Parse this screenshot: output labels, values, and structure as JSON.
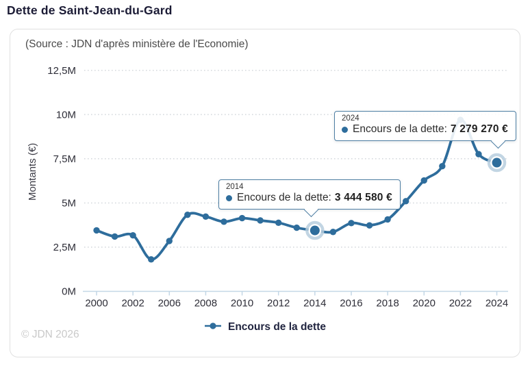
{
  "page": {
    "title": "Dette de Saint-Jean-du-Gard"
  },
  "card": {
    "subtitle": "(Source : JDN d'après ministère de l'Economie)"
  },
  "footer": {
    "copyright": "© JDN 2026"
  },
  "legend": {
    "label": "Encours de la dette"
  },
  "colors": {
    "line": "#2e6d9c",
    "halo": "#b7cede",
    "grid_dots": "#d6dade",
    "axis": "#c3d7e6",
    "tick_label": "#2e2e38",
    "tooltip_border": "#4d7ea3"
  },
  "tooltips": [
    {
      "year": "2014",
      "label": "Encours de la dette:",
      "value": "3 444 580 €"
    },
    {
      "year": "2024",
      "label": "Encours de la dette:",
      "value": "7 279 270 €"
    }
  ],
  "chart_data": {
    "type": "line",
    "title": "Dette de Saint-Jean-du-Gard",
    "xlabel": "",
    "ylabel": "Montants (€)",
    "ylim": [
      0,
      12500000
    ],
    "grid": "horizontal dotted",
    "legend_position": "bottom",
    "line_style": "smooth spline with point markers",
    "series": [
      {
        "name": "Encours de la dette",
        "x": [
          2000,
          2001,
          2002,
          2004,
          2006,
          2007,
          2008,
          2009,
          2010,
          2011,
          2012,
          2013,
          2014,
          2015,
          2016,
          2017,
          2018,
          2019,
          2020,
          2021,
          2022,
          2023,
          2024
        ],
        "values": [
          3450000,
          3100000,
          3170000,
          1810000,
          2850000,
          4330000,
          4230000,
          3940000,
          4140000,
          4010000,
          3880000,
          3600000,
          3444580,
          3360000,
          3860000,
          3730000,
          4070000,
          5100000,
          6270000,
          7080000,
          9700000,
          7760000,
          7279270
        ]
      }
    ],
    "x_tick_labels": [
      "2000",
      "2002",
      "2006",
      "2008",
      "2010",
      "2012",
      "2014",
      "2016",
      "2018",
      "2020",
      "2022",
      "2024"
    ],
    "x_tick_point_indices": [
      0,
      2,
      4,
      6,
      8,
      10,
      12,
      14,
      16,
      18,
      20,
      22
    ],
    "y_tick_labels": [
      "0M",
      "2,5M",
      "5M",
      "7,5M",
      "10M",
      "12,5M"
    ],
    "y_tick_values": [
      0,
      2500000,
      5000000,
      7500000,
      10000000,
      12500000
    ],
    "highlighted_points": [
      {
        "year": 2014,
        "value": 3444580,
        "point_index": 12
      },
      {
        "year": 2024,
        "value": 7279270,
        "point_index": 22
      }
    ]
  }
}
